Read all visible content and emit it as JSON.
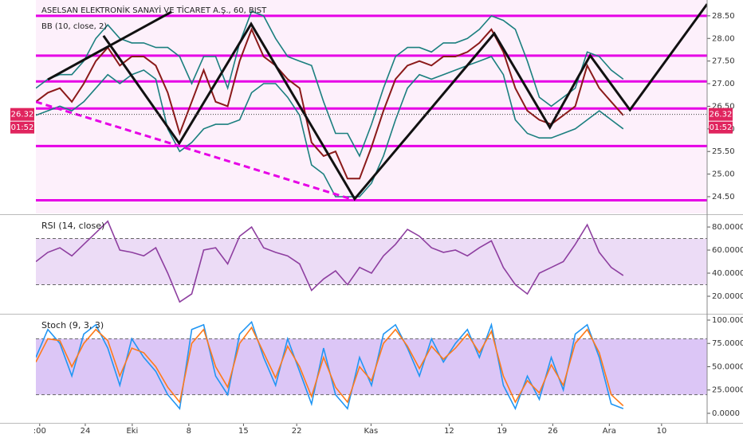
{
  "chart_data": [
    {
      "type": "line",
      "title": "ASELSAN ELEKTRONİK SANAYİ VE TİCARET A.Ş., 60, BIST",
      "indicator": "BB (10, close, 2)",
      "x": [
        0,
        2.5,
        5,
        7.5,
        10,
        12.5,
        15,
        17.5,
        20,
        22.5,
        25,
        27.5,
        30,
        32.5,
        35,
        37.5,
        40,
        42.5,
        45,
        47.5,
        50,
        52.5,
        55,
        57.5,
        60,
        62.5,
        65,
        67.5,
        70,
        72.5,
        75,
        77.5,
        80,
        82.5,
        85,
        87.5,
        90,
        92.5,
        95,
        97.5,
        100,
        102.5,
        105,
        107.5,
        110,
        112.5,
        115,
        117.5,
        120,
        122.5
      ],
      "series": [
        {
          "color": "#1b7f7f",
          "values": [
            26.9,
            27.1,
            27.2,
            27.2,
            27.5,
            28.0,
            28.3,
            28.0,
            27.9,
            27.9,
            27.8,
            27.8,
            27.6,
            27.0,
            27.6,
            27.6,
            26.9,
            27.9,
            28.6,
            28.5,
            28.0,
            27.6,
            27.5,
            27.4,
            26.6,
            25.9,
            25.9,
            25.4,
            26.1,
            26.9,
            27.6,
            27.8,
            27.8,
            27.7,
            27.9,
            27.9,
            28.0,
            28.2,
            28.5,
            28.4,
            28.2,
            27.5,
            26.7,
            26.5,
            26.7,
            26.9,
            27.7,
            27.6,
            27.3,
            27.1
          ]
        },
        {
          "color": "#8b1a1a",
          "values": [
            26.6,
            26.8,
            26.9,
            26.6,
            27.0,
            27.5,
            27.8,
            27.4,
            27.6,
            27.6,
            27.4,
            26.8,
            25.9,
            26.6,
            27.3,
            26.6,
            26.5,
            27.5,
            28.2,
            27.6,
            27.4,
            27.1,
            26.9,
            25.7,
            25.4,
            25.5,
            24.9,
            24.9,
            25.6,
            26.4,
            27.1,
            27.4,
            27.5,
            27.4,
            27.6,
            27.6,
            27.7,
            27.9,
            28.2,
            27.7,
            26.9,
            26.4,
            26.2,
            26.1,
            26.3,
            26.5,
            27.4,
            26.9,
            26.6,
            26.3
          ]
        },
        {
          "color": "#1b7f7f",
          "values": [
            26.3,
            26.4,
            26.5,
            26.4,
            26.6,
            26.9,
            27.2,
            27.0,
            27.2,
            27.3,
            27.1,
            26.0,
            25.5,
            25.7,
            26.0,
            26.1,
            26.1,
            26.2,
            26.8,
            27.0,
            27.0,
            26.7,
            26.3,
            25.2,
            25.0,
            24.5,
            24.5,
            24.5,
            24.8,
            25.4,
            26.2,
            26.9,
            27.2,
            27.1,
            27.2,
            27.3,
            27.4,
            27.5,
            27.6,
            27.2,
            26.2,
            25.9,
            25.8,
            25.8,
            25.9,
            26.0,
            26.2,
            26.4,
            26.2,
            26.0
          ]
        }
      ],
      "levels": [
        28.5,
        27.62,
        27.05,
        26.45,
        25.62,
        24.42
      ],
      "level_color": "#e600e6",
      "trendlines": [
        {
          "color": "#111111",
          "dash": false,
          "x": [
            2.5,
            28.3
          ],
          "y": [
            27.09,
            28.59
          ]
        },
        {
          "color": "#111111",
          "dash": false,
          "x": [
            14.1,
            29.9,
            44.9,
            66.5,
            95.6,
            107.2,
            115.6,
            123.9,
            140
          ],
          "y": [
            28.06,
            25.68,
            28.32,
            24.45,
            28.11,
            26.03,
            27.62,
            26.42,
            28.76
          ]
        },
        {
          "color": "#e600e6",
          "dash": true,
          "x": [
            0,
            65.7
          ],
          "y": [
            26.6,
            24.45
          ]
        }
      ],
      "last_price": {
        "value": 26.32,
        "label": "26.32"
      },
      "timer": "01:52",
      "xlim": [
        0,
        140
      ],
      "xticks": [
        {
          "value": 0.8,
          "label": ":00"
        },
        {
          "value": 10.3,
          "label": "24"
        },
        {
          "value": 20.1,
          "label": "Eki"
        },
        {
          "value": 31.9,
          "label": "8"
        },
        {
          "value": 43.3,
          "label": "15"
        },
        {
          "value": 54.4,
          "label": "22"
        },
        {
          "value": 69.9,
          "label": "Kas"
        },
        {
          "value": 86.2,
          "label": "12"
        },
        {
          "value": 97.2,
          "label": "19"
        },
        {
          "value": 107.8,
          "label": "26"
        },
        {
          "value": 119.6,
          "label": "Ara"
        },
        {
          "value": 130.5,
          "label": "10"
        }
      ],
      "ylim": [
        24.13,
        28.85
      ],
      "yticks": [
        {
          "value": 24.5,
          "label": "24.50"
        },
        {
          "value": 25,
          "label": "25.00"
        },
        {
          "value": 25.5,
          "label": "25.50"
        },
        {
          "value": 26,
          "label": "26.00"
        },
        {
          "value": 26.5,
          "label": "26.50"
        },
        {
          "value": 27,
          "label": "27.00"
        },
        {
          "value": 27.5,
          "label": "27.50"
        },
        {
          "value": 28,
          "label": "28.00"
        },
        {
          "value": 28.5,
          "label": "28.50"
        }
      ]
    },
    {
      "type": "line",
      "title": "RSI (14, close)",
      "series": [
        {
          "color": "#8e3fa0",
          "values": [
            50,
            58,
            62,
            55,
            65,
            75,
            85,
            60,
            58,
            55,
            62,
            40,
            15,
            22,
            60,
            62,
            48,
            72,
            80,
            62,
            58,
            55,
            48,
            25,
            35,
            42,
            30,
            45,
            40,
            55,
            65,
            78,
            72,
            62,
            58,
            60,
            55,
            62,
            68,
            45,
            30,
            22,
            40,
            45,
            50,
            65,
            82,
            58,
            45,
            38
          ]
        }
      ],
      "bands": [
        30,
        70
      ],
      "band_color": "#ecdcf6",
      "ylim": [
        5.5,
        89.7
      ],
      "yticks": [
        {
          "value": 20,
          "label": "20.0000"
        },
        {
          "value": 40,
          "label": "40.0000"
        },
        {
          "value": 60,
          "label": "60.0000"
        },
        {
          "value": 80,
          "label": "80.0000"
        }
      ]
    },
    {
      "type": "line",
      "title": "Stoch (9, 3, 3)",
      "series": [
        {
          "color": "#2196f3",
          "values": [
            60,
            90,
            75,
            40,
            85,
            95,
            70,
            30,
            80,
            60,
            45,
            20,
            5,
            90,
            95,
            40,
            20,
            85,
            98,
            60,
            30,
            80,
            45,
            10,
            70,
            20,
            5,
            60,
            30,
            85,
            95,
            70,
            40,
            80,
            55,
            75,
            90,
            60,
            95,
            30,
            5,
            40,
            15,
            60,
            25,
            85,
            95,
            60,
            10,
            5
          ]
        },
        {
          "color": "#ff7a1a",
          "values": [
            55,
            80,
            78,
            50,
            75,
            90,
            78,
            40,
            70,
            65,
            50,
            28,
            12,
            75,
            90,
            50,
            28,
            75,
            92,
            65,
            38,
            72,
            50,
            18,
            60,
            28,
            12,
            50,
            35,
            75,
            90,
            72,
            48,
            72,
            58,
            70,
            85,
            65,
            88,
            40,
            12,
            35,
            22,
            52,
            30,
            75,
            90,
            65,
            20,
            8
          ]
        }
      ],
      "bands": [
        20,
        80
      ],
      "band_color": "#dcc6f6",
      "ylim": [
        -9.4,
        105.1
      ],
      "yticks": [
        {
          "value": 0,
          "label": "0.0000"
        },
        {
          "value": 25,
          "label": "25.0000"
        },
        {
          "value": 50,
          "label": "50.0000"
        },
        {
          "value": 75,
          "label": "75.0000"
        },
        {
          "value": 100,
          "label": "100.0000"
        }
      ]
    }
  ]
}
